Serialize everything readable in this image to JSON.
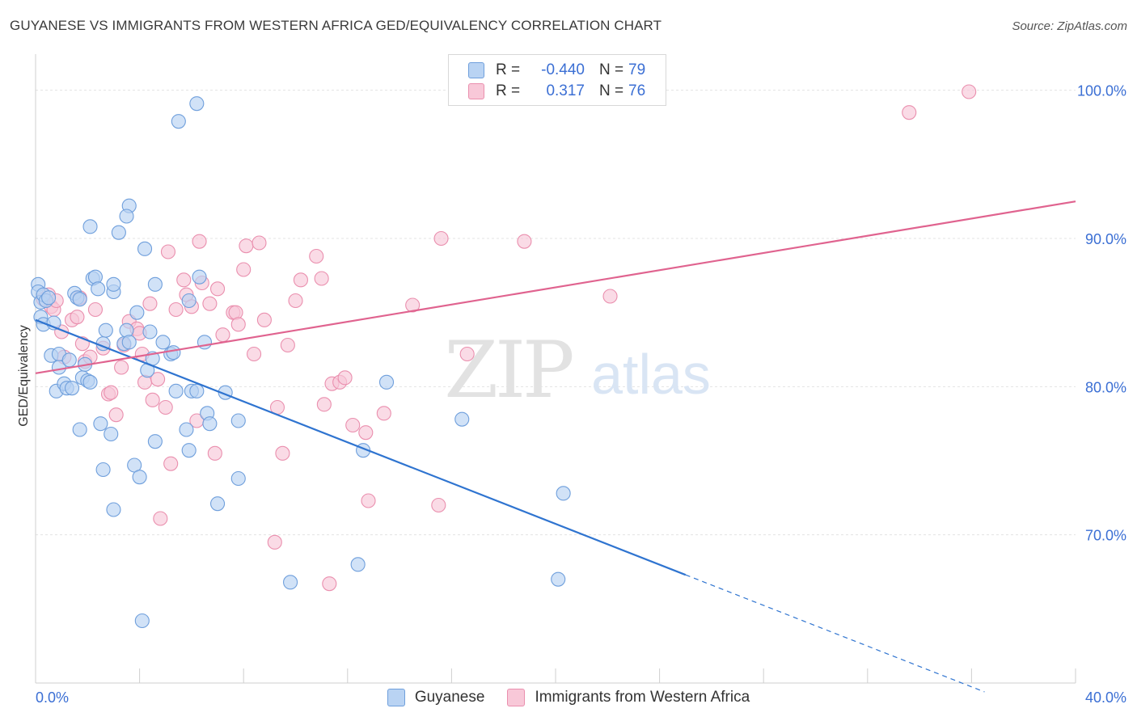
{
  "header": {
    "title": "GUYANESE VS IMMIGRANTS FROM WESTERN AFRICA GED/EQUIVALENCY CORRELATION CHART",
    "source": "Source: ZipAtlas.com"
  },
  "watermark": {
    "zip": "ZIP",
    "atlas": "atlas"
  },
  "legend": {
    "rows": [
      {
        "r_label": "R =",
        "r_value": "-0.440",
        "n_label": "N =",
        "n_value": "79"
      },
      {
        "r_label": "R =",
        "r_value": "0.317",
        "n_label": "N =",
        "n_value": "76"
      }
    ]
  },
  "bottom_legend": {
    "series1": "Guyanese",
    "series2": "Immigrants from Western Africa"
  },
  "colors": {
    "blue_fill": "#b9d3f3",
    "blue_stroke": "#6f9fdc",
    "blue_line": "#2f74d0",
    "pink_fill": "#f8c8d8",
    "pink_stroke": "#ea8fae",
    "pink_line": "#e0638f",
    "tick_text": "#3b6fd4",
    "grid": "#e3e3e3"
  },
  "chart_data": {
    "type": "scatter",
    "title": "GUYANESE VS IMMIGRANTS FROM WESTERN AFRICA GED/EQUIVALENCY CORRELATION CHART",
    "xlabel": "",
    "ylabel": "GED/Equivalency",
    "xlim": [
      0,
      40
    ],
    "ylim": [
      60,
      102
    ],
    "x_ticks": [
      {
        "value": 0,
        "label": "0.0%"
      },
      {
        "value": 40,
        "label": "40.0%"
      }
    ],
    "x_minor_ticks": [
      0,
      4,
      8,
      12,
      16,
      20,
      24,
      28,
      32,
      36,
      40
    ],
    "y_ticks": [
      {
        "value": 70,
        "label": "70.0%"
      },
      {
        "value": 80,
        "label": "80.0%"
      },
      {
        "value": 90,
        "label": "90.0%"
      },
      {
        "value": 100,
        "label": "100.0%"
      }
    ],
    "grid": true,
    "series": [
      {
        "name": "Guyanese",
        "color": "#6f9fdc",
        "trend": {
          "x0": 0,
          "y0": 84.5,
          "x1": 25,
          "y1": 67.3,
          "dash_to_x": 36.5,
          "dash_to_y": 59.4
        },
        "points": [
          [
            0.1,
            86.9
          ],
          [
            0.1,
            86.4
          ],
          [
            0.2,
            85.7
          ],
          [
            0.2,
            84.7
          ],
          [
            0.3,
            84.2
          ],
          [
            0.3,
            86.2
          ],
          [
            0.4,
            85.8
          ],
          [
            0.5,
            86.0
          ],
          [
            0.7,
            84.3
          ],
          [
            0.6,
            82.1
          ],
          [
            0.9,
            82.2
          ],
          [
            0.9,
            81.3
          ],
          [
            0.8,
            79.7
          ],
          [
            1.1,
            80.2
          ],
          [
            1.2,
            79.9
          ],
          [
            1.4,
            79.9
          ],
          [
            1.3,
            81.8
          ],
          [
            1.5,
            86.3
          ],
          [
            1.6,
            86.0
          ],
          [
            1.7,
            85.9
          ],
          [
            1.8,
            80.6
          ],
          [
            1.9,
            81.5
          ],
          [
            2.0,
            80.4
          ],
          [
            2.1,
            80.3
          ],
          [
            2.1,
            90.8
          ],
          [
            2.2,
            87.3
          ],
          [
            2.3,
            87.4
          ],
          [
            2.4,
            86.6
          ],
          [
            2.6,
            82.9
          ],
          [
            2.7,
            83.8
          ],
          [
            3.0,
            86.4
          ],
          [
            3.2,
            90.4
          ],
          [
            3.4,
            82.9
          ],
          [
            3.5,
            83.8
          ],
          [
            3.6,
            83.0
          ],
          [
            3.6,
            92.2
          ],
          [
            3.5,
            91.5
          ],
          [
            3.9,
            85.0
          ],
          [
            4.2,
            89.3
          ],
          [
            4.3,
            81.1
          ],
          [
            4.4,
            83.7
          ],
          [
            4.5,
            81.9
          ],
          [
            4.6,
            86.9
          ],
          [
            4.9,
            83.0
          ],
          [
            5.2,
            82.2
          ],
          [
            5.3,
            82.3
          ],
          [
            5.5,
            97.9
          ],
          [
            5.9,
            85.8
          ],
          [
            6.0,
            79.7
          ],
          [
            6.2,
            99.1
          ],
          [
            6.3,
            87.4
          ],
          [
            6.5,
            83.0
          ],
          [
            6.6,
            78.2
          ],
          [
            6.7,
            77.5
          ],
          [
            7.0,
            72.1
          ],
          [
            7.3,
            79.6
          ],
          [
            7.8,
            77.7
          ],
          [
            7.8,
            73.8
          ],
          [
            1.7,
            77.1
          ],
          [
            2.5,
            77.5
          ],
          [
            2.9,
            76.8
          ],
          [
            2.6,
            74.4
          ],
          [
            3.0,
            71.7
          ],
          [
            3.8,
            74.7
          ],
          [
            4.0,
            73.9
          ],
          [
            4.6,
            76.3
          ],
          [
            5.4,
            79.7
          ],
          [
            5.8,
            77.1
          ],
          [
            5.9,
            75.7
          ],
          [
            6.2,
            79.7
          ],
          [
            9.8,
            66.8
          ],
          [
            12.4,
            68.0
          ],
          [
            12.6,
            75.7
          ],
          [
            13.5,
            80.3
          ],
          [
            16.4,
            77.8
          ],
          [
            20.1,
            67.0
          ],
          [
            20.3,
            72.8
          ],
          [
            4.1,
            64.2
          ],
          [
            3.0,
            86.9
          ]
        ]
      },
      {
        "name": "Immigrants from Western Africa",
        "color": "#ea8fae",
        "trend": {
          "x0": 0,
          "y0": 80.9,
          "x1": 40,
          "y1": 92.5
        },
        "points": [
          [
            0.3,
            85.9
          ],
          [
            0.5,
            86.2
          ],
          [
            0.6,
            85.4
          ],
          [
            0.7,
            85.2
          ],
          [
            0.8,
            85.8
          ],
          [
            1.0,
            83.7
          ],
          [
            1.1,
            82.0
          ],
          [
            1.4,
            84.5
          ],
          [
            1.6,
            84.7
          ],
          [
            1.7,
            86.0
          ],
          [
            1.8,
            82.9
          ],
          [
            1.9,
            81.7
          ],
          [
            2.1,
            82.0
          ],
          [
            2.3,
            85.2
          ],
          [
            2.6,
            82.6
          ],
          [
            2.8,
            79.5
          ],
          [
            2.9,
            79.6
          ],
          [
            3.1,
            78.1
          ],
          [
            3.3,
            81.3
          ],
          [
            3.4,
            82.8
          ],
          [
            3.6,
            84.4
          ],
          [
            3.9,
            83.9
          ],
          [
            4.0,
            83.6
          ],
          [
            4.1,
            82.2
          ],
          [
            4.2,
            80.3
          ],
          [
            4.4,
            85.6
          ],
          [
            4.5,
            79.1
          ],
          [
            4.7,
            80.5
          ],
          [
            5.0,
            78.6
          ],
          [
            5.1,
            89.1
          ],
          [
            5.4,
            85.2
          ],
          [
            5.7,
            87.2
          ],
          [
            5.8,
            86.2
          ],
          [
            6.0,
            85.4
          ],
          [
            6.2,
            77.7
          ],
          [
            6.3,
            89.8
          ],
          [
            6.4,
            87.0
          ],
          [
            6.7,
            85.6
          ],
          [
            6.9,
            75.5
          ],
          [
            7.0,
            86.6
          ],
          [
            7.2,
            83.5
          ],
          [
            7.6,
            85.0
          ],
          [
            7.7,
            85.0
          ],
          [
            7.8,
            84.2
          ],
          [
            8.0,
            87.9
          ],
          [
            8.1,
            89.5
          ],
          [
            8.4,
            82.2
          ],
          [
            8.6,
            89.7
          ],
          [
            8.8,
            84.5
          ],
          [
            9.3,
            78.6
          ],
          [
            9.5,
            75.5
          ],
          [
            9.7,
            82.8
          ],
          [
            10.0,
            85.8
          ],
          [
            10.2,
            87.2
          ],
          [
            10.8,
            88.8
          ],
          [
            11.0,
            87.3
          ],
          [
            11.1,
            78.8
          ],
          [
            11.4,
            80.2
          ],
          [
            11.7,
            80.3
          ],
          [
            11.9,
            80.6
          ],
          [
            12.2,
            77.4
          ],
          [
            12.7,
            76.9
          ],
          [
            12.8,
            72.3
          ],
          [
            13.4,
            78.2
          ],
          [
            14.5,
            85.5
          ],
          [
            15.5,
            72.0
          ],
          [
            15.6,
            90.0
          ],
          [
            16.6,
            82.2
          ],
          [
            18.8,
            89.8
          ],
          [
            22.1,
            86.1
          ],
          [
            33.6,
            98.5
          ],
          [
            35.9,
            99.9
          ],
          [
            9.2,
            69.5
          ],
          [
            11.3,
            66.7
          ],
          [
            4.8,
            71.1
          ],
          [
            5.2,
            74.8
          ]
        ]
      }
    ]
  }
}
